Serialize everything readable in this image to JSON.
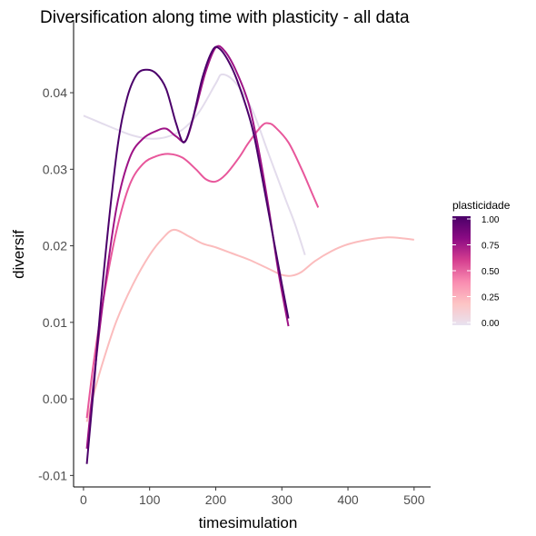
{
  "chart_data": {
    "type": "line",
    "title": "Diversification along time with plasticity - all data",
    "xlabel": "timesimulation",
    "ylabel": "diversif",
    "xlim": [
      -15,
      525
    ],
    "ylim": [
      -0.0115,
      0.0495
    ],
    "x_ticks": [
      0,
      100,
      200,
      300,
      400,
      500
    ],
    "y_ticks": [
      -0.01,
      0.0,
      0.01,
      0.02,
      0.03,
      0.04
    ],
    "x_tick_labels": [
      "0",
      "100",
      "200",
      "300",
      "400",
      "500"
    ],
    "y_tick_labels": [
      "-0.01",
      "0.00",
      "0.01",
      "0.02",
      "0.03",
      "0.04"
    ],
    "grid": false,
    "legend": {
      "title": "plasticidade",
      "position": "right",
      "type": "colorbar",
      "ticks": [
        1.0,
        0.75,
        0.5,
        0.25,
        0.0
      ],
      "tick_labels": [
        "1.00",
        "0.75",
        "0.50",
        "0.25",
        "0.00"
      ],
      "gradient_colors": [
        "#4a0068",
        "#8a0a83",
        "#d43d8f",
        "#f98bb0",
        "#fdc4c4",
        "#e8e2f0"
      ]
    },
    "series": [
      {
        "plasticidade": 0.0,
        "color": "#e3dcec",
        "points": [
          [
            0,
            0.037
          ],
          [
            25,
            0.0361
          ],
          [
            50,
            0.0352
          ],
          [
            75,
            0.0344
          ],
          [
            100,
            0.034
          ],
          [
            125,
            0.0342
          ],
          [
            150,
            0.0352
          ],
          [
            175,
            0.0375
          ],
          [
            200,
            0.0412
          ],
          [
            210,
            0.0424
          ],
          [
            230,
            0.0413
          ],
          [
            255,
            0.0378
          ],
          [
            280,
            0.032
          ],
          [
            305,
            0.0262
          ],
          [
            320,
            0.0228
          ],
          [
            335,
            0.0188
          ]
        ]
      },
      {
        "plasticidade": 0.25,
        "color": "#fbbcbd",
        "points": [
          [
            5,
            -0.003
          ],
          [
            15,
            0.0005
          ],
          [
            30,
            0.005
          ],
          [
            50,
            0.0102
          ],
          [
            75,
            0.015
          ],
          [
            100,
            0.0188
          ],
          [
            120,
            0.021
          ],
          [
            137,
            0.0221
          ],
          [
            160,
            0.0212
          ],
          [
            180,
            0.0203
          ],
          [
            200,
            0.0198
          ],
          [
            225,
            0.019
          ],
          [
            250,
            0.0182
          ],
          [
            280,
            0.017
          ],
          [
            300,
            0.0162
          ],
          [
            315,
            0.0161
          ],
          [
            330,
            0.0166
          ],
          [
            350,
            0.018
          ],
          [
            375,
            0.0193
          ],
          [
            400,
            0.0202
          ],
          [
            430,
            0.0208
          ],
          [
            460,
            0.0211
          ],
          [
            480,
            0.021
          ],
          [
            500,
            0.0208
          ]
        ]
      },
      {
        "plasticidade": 0.62,
        "color": "#e8579b",
        "points": [
          [
            5,
            -0.0025
          ],
          [
            15,
            0.0045
          ],
          [
            30,
            0.013
          ],
          [
            50,
            0.022
          ],
          [
            70,
            0.028
          ],
          [
            90,
            0.0307
          ],
          [
            110,
            0.0317
          ],
          [
            130,
            0.032
          ],
          [
            150,
            0.0315
          ],
          [
            170,
            0.03
          ],
          [
            185,
            0.0287
          ],
          [
            200,
            0.0284
          ],
          [
            215,
            0.0293
          ],
          [
            235,
            0.0315
          ],
          [
            250,
            0.0335
          ],
          [
            270,
            0.0357
          ],
          [
            280,
            0.036
          ],
          [
            290,
            0.0355
          ],
          [
            310,
            0.0335
          ],
          [
            330,
            0.03
          ],
          [
            345,
            0.027
          ],
          [
            355,
            0.025
          ]
        ]
      },
      {
        "plasticidade": 0.85,
        "color": "#9e1386",
        "points": [
          [
            5,
            -0.0065
          ],
          [
            15,
            0.002
          ],
          [
            30,
            0.013
          ],
          [
            50,
            0.025
          ],
          [
            70,
            0.0315
          ],
          [
            90,
            0.034
          ],
          [
            110,
            0.035
          ],
          [
            125,
            0.0353
          ],
          [
            140,
            0.0343
          ],
          [
            155,
            0.0338
          ],
          [
            170,
            0.038
          ],
          [
            185,
            0.0428
          ],
          [
            200,
            0.0459
          ],
          [
            213,
            0.0455
          ],
          [
            230,
            0.043
          ],
          [
            250,
            0.0385
          ],
          [
            265,
            0.0325
          ],
          [
            280,
            0.025
          ],
          [
            295,
            0.0165
          ],
          [
            310,
            0.0095
          ]
        ]
      },
      {
        "plasticidade": 1.0,
        "color": "#4b006a",
        "points": [
          [
            5,
            -0.0085
          ],
          [
            15,
            0.001
          ],
          [
            30,
            0.016
          ],
          [
            50,
            0.032
          ],
          [
            65,
            0.039
          ],
          [
            80,
            0.0423
          ],
          [
            95,
            0.043
          ],
          [
            110,
            0.0425
          ],
          [
            125,
            0.0405
          ],
          [
            140,
            0.036
          ],
          [
            152,
            0.0335
          ],
          [
            165,
            0.0365
          ],
          [
            180,
            0.042
          ],
          [
            195,
            0.0455
          ],
          [
            205,
            0.0458
          ],
          [
            220,
            0.044
          ],
          [
            235,
            0.041
          ],
          [
            255,
            0.0355
          ],
          [
            270,
            0.029
          ],
          [
            285,
            0.022
          ],
          [
            300,
            0.015
          ],
          [
            310,
            0.0105
          ]
        ]
      }
    ]
  }
}
